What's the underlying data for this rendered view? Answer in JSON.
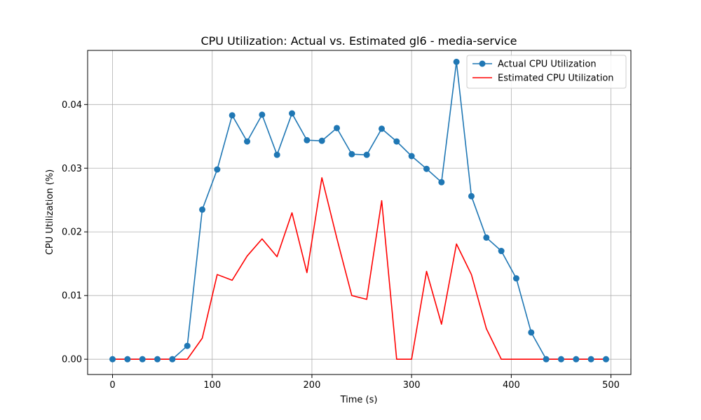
{
  "chart_data": {
    "type": "line",
    "title": "CPU Utilization: Actual vs. Estimated gl6 - media-service",
    "xlabel": "Time (s)",
    "ylabel": "CPU Utilization (%)",
    "xlim": [
      -25,
      520
    ],
    "ylim": [
      -0.0024,
      0.0485
    ],
    "xticks": [
      0,
      100,
      200,
      300,
      400,
      500
    ],
    "xtick_labels": [
      "0",
      "100",
      "200",
      "300",
      "400",
      "500"
    ],
    "yticks": [
      0.0,
      0.01,
      0.02,
      0.03,
      0.04
    ],
    "ytick_labels": [
      "0.00",
      "0.01",
      "0.02",
      "0.03",
      "0.04"
    ],
    "grid": true,
    "legend_position": "top-right",
    "x": [
      0,
      15,
      30,
      45,
      60,
      75,
      90,
      105,
      120,
      135,
      150,
      165,
      180,
      195,
      210,
      225,
      240,
      255,
      270,
      285,
      300,
      315,
      330,
      345,
      360,
      375,
      390,
      405,
      420,
      435,
      450,
      465,
      480,
      495
    ],
    "series": [
      {
        "name": "Actual CPU Utilization",
        "color": "#1f77b4",
        "marker": "circle",
        "values": [
          0.0,
          0.0,
          0.0,
          0.0,
          0.0,
          0.0021,
          0.0235,
          0.0298,
          0.0383,
          0.0342,
          0.0384,
          0.0321,
          0.0386,
          0.0344,
          0.0343,
          0.0363,
          0.0322,
          0.0321,
          0.0362,
          0.0342,
          0.0319,
          0.0299,
          0.0278,
          0.0467,
          0.0256,
          0.0191,
          0.017,
          0.0127,
          0.0042,
          0.0,
          0.0,
          0.0,
          0.0,
          0.0
        ]
      },
      {
        "name": "Estimated CPU Utilization",
        "color": "#ff0000",
        "marker": "none",
        "values": [
          0.0,
          0.0,
          0.0,
          0.0,
          0.0,
          0.0,
          0.0033,
          0.0133,
          0.0124,
          0.0162,
          0.0189,
          0.0161,
          0.023,
          0.0136,
          0.0285,
          0.019,
          0.01,
          0.0094,
          0.0249,
          0.0,
          0.0,
          0.0138,
          0.0055,
          0.0181,
          0.0133,
          0.0048,
          0.0,
          0.0,
          0.0,
          0.0,
          0.0,
          0.0,
          0.0,
          0.0
        ]
      }
    ]
  }
}
